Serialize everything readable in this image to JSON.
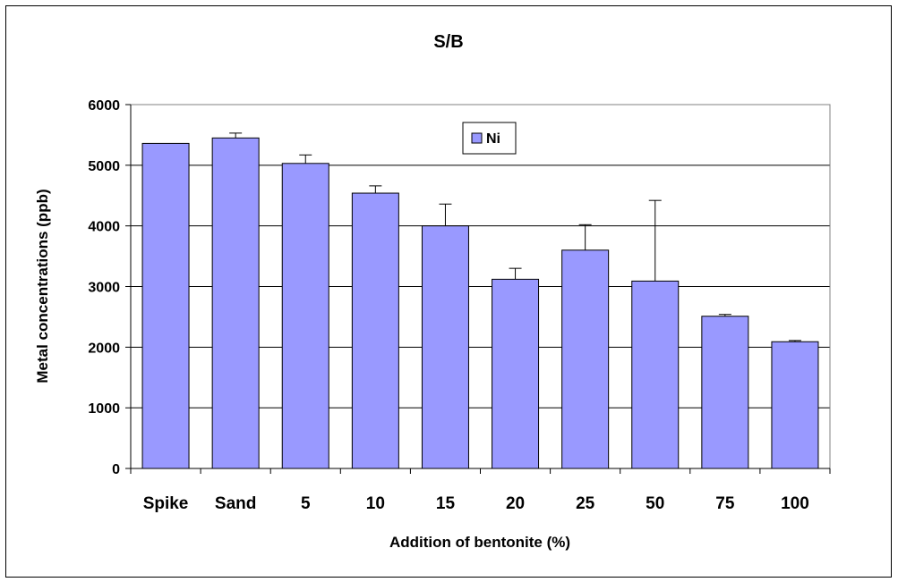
{
  "chart_data": {
    "type": "bar",
    "title": "S/B",
    "xlabel": "Addition of bentonite (%)",
    "ylabel": "Metal concentrations (ppb)",
    "categories": [
      "Spike",
      "Sand",
      "5",
      "10",
      "15",
      "20",
      "25",
      "50",
      "75",
      "100"
    ],
    "series": [
      {
        "name": "Ni",
        "color": "#9999ff",
        "values": [
          5360,
          5450,
          5030,
          4540,
          4000,
          3120,
          3600,
          3090,
          2510,
          2090
        ],
        "error_upper": [
          0,
          80,
          140,
          120,
          360,
          180,
          420,
          1330,
          30,
          20
        ]
      }
    ],
    "ylim": [
      0,
      6000
    ],
    "yticks": [
      0,
      1000,
      2000,
      3000,
      4000,
      5000,
      6000
    ],
    "grid": true,
    "legend_position": "top-center"
  }
}
